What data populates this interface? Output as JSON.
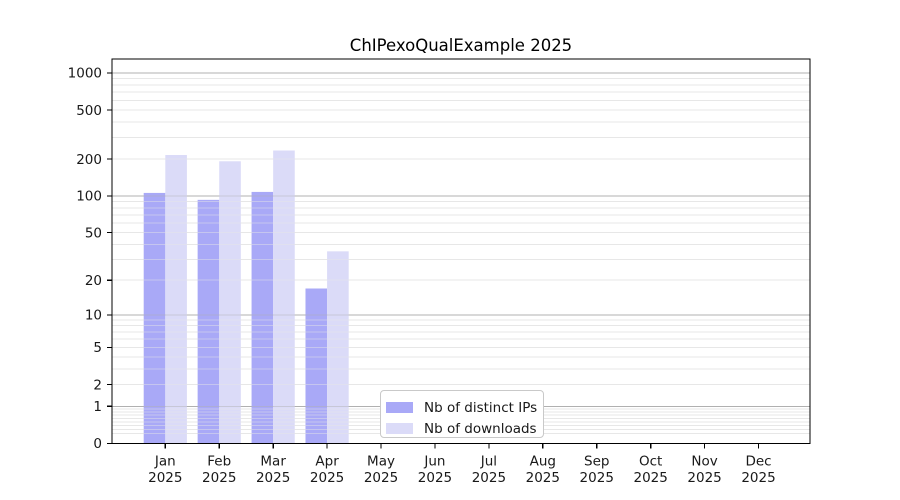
{
  "chart_data": {
    "type": "bar",
    "title": "ChIPexoQualExample 2025",
    "y_scale": "log10(value+1)",
    "ylim": [
      0,
      1310
    ],
    "grid": true,
    "y_ticks": [
      1000,
      500,
      200,
      100,
      50,
      20,
      10,
      5,
      2,
      1,
      0
    ],
    "major_grid_values": [
      1000,
      100,
      10,
      1
    ],
    "categories": [
      "Jan",
      "Feb",
      "Mar",
      "Apr",
      "May",
      "Jun",
      "Jul",
      "Aug",
      "Sep",
      "Oct",
      "Nov",
      "Dec"
    ],
    "category_year": "2025",
    "series": [
      {
        "name": "Nb of distinct IPs",
        "color": "#a9a9f7",
        "values": [
          106,
          93,
          108,
          17,
          null,
          null,
          null,
          null,
          null,
          null,
          null,
          null
        ]
      },
      {
        "name": "Nb of downloads",
        "color": "#dbdbf8",
        "values": [
          216,
          192,
          235,
          35,
          null,
          null,
          null,
          null,
          null,
          null,
          null,
          null
        ]
      }
    ],
    "legend_position": "lower center"
  },
  "colors": {
    "background": "#ffffff",
    "axis": "#000000",
    "text": "#191919",
    "major_grid": "#b0b0b0",
    "minor_grid": "#e7e7e7",
    "legend_border": "#c9c9c9"
  }
}
